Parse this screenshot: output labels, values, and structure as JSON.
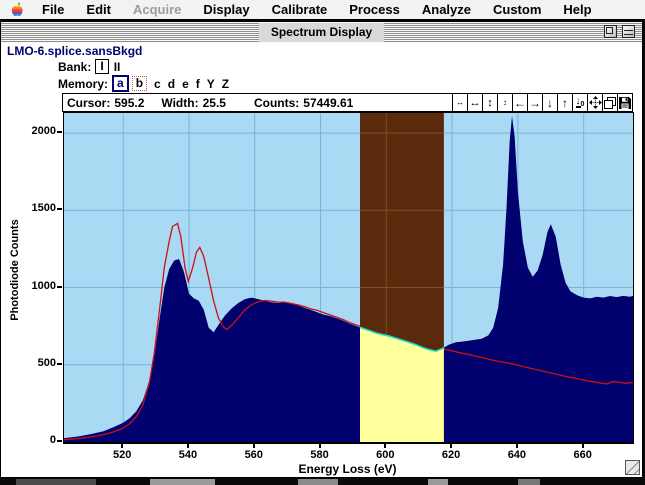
{
  "menu_bar": {
    "items": [
      {
        "label": "File",
        "enabled": true
      },
      {
        "label": "Edit",
        "enabled": true
      },
      {
        "label": "Acquire",
        "enabled": false
      },
      {
        "label": "Display",
        "enabled": true
      },
      {
        "label": "Calibrate",
        "enabled": true
      },
      {
        "label": "Process",
        "enabled": true
      },
      {
        "label": "Analyze",
        "enabled": true
      },
      {
        "label": "Custom",
        "enabled": true
      },
      {
        "label": "Help",
        "enabled": true
      }
    ]
  },
  "window": {
    "title": "Spectrum Display",
    "file_name": "LMO-6.splice.sansBkgd"
  },
  "bank": {
    "label": "Bank:",
    "options": [
      {
        "label": "I",
        "selected": true
      },
      {
        "label": "II",
        "selected": false
      }
    ]
  },
  "memory": {
    "label": "Memory:",
    "options": [
      {
        "label": "a",
        "state": "primary"
      },
      {
        "label": "b",
        "state": "secondary"
      },
      {
        "label": "c",
        "state": "none"
      },
      {
        "label": "d",
        "state": "none"
      },
      {
        "label": "e",
        "state": "none"
      },
      {
        "label": "f",
        "state": "none"
      },
      {
        "label": "Y",
        "state": "none"
      },
      {
        "label": "Z",
        "state": "none"
      }
    ]
  },
  "status": {
    "cursor_label": "Cursor:",
    "cursor_value": "595.2",
    "width_label": "Width:",
    "width_value": "25.5",
    "counts_label": "Counts:",
    "counts_value": "57449.61"
  },
  "toolbar": {
    "buttons": [
      {
        "name": "expand-horizontal-small-icon",
        "glyph": "↔",
        "size": "fs8"
      },
      {
        "name": "expand-horizontal-icon",
        "glyph": "↔",
        "size": "fs11"
      },
      {
        "name": "expand-vertical-icon",
        "glyph": "↕",
        "size": "fs11"
      },
      {
        "name": "contract-vertical-icon",
        "glyph": "↕",
        "size": "fs8"
      },
      {
        "name": "pan-left-icon",
        "glyph": "←",
        "size": "fs12"
      },
      {
        "name": "pan-right-icon",
        "glyph": "→",
        "size": "fs12"
      },
      {
        "name": "shift-down-icon",
        "glyph": "↓",
        "size": "fs12"
      },
      {
        "name": "shift-up-icon",
        "glyph": "↑",
        "size": "fs12"
      },
      {
        "name": "zero-baseline-icon",
        "glyph": "svg:zero",
        "size": "fs8"
      },
      {
        "name": "autoscale-icon",
        "glyph": "svg:move",
        "size": "fs8"
      },
      {
        "name": "copy-display-icon",
        "glyph": "svg:copy",
        "size": "fs8"
      },
      {
        "name": "save-display-icon",
        "glyph": "svg:disk",
        "size": "fs8"
      }
    ]
  },
  "colors": {
    "plot_bg": "#a9d9f3",
    "grid": "#74b6da",
    "spectrum_fill": "#00006e",
    "background_line": "#cc1111",
    "selection_above": "#5b2a0c",
    "selection_below": "#ffff9c",
    "selection_edge": "#18e0c8",
    "band_grid": "#8a4a22",
    "file_label": "#00006e"
  },
  "chart_data": {
    "type": "area",
    "title": "",
    "xlabel": "Energy Loss (eV)",
    "ylabel": "Photodiode Counts",
    "xlim": [
      502,
      675
    ],
    "ylim": [
      0,
      2130
    ],
    "x_ticks": [
      520,
      540,
      560,
      580,
      600,
      620,
      640,
      660
    ],
    "y_ticks": [
      0,
      500,
      1000,
      1500,
      2000
    ],
    "grid": true,
    "legend": "none",
    "selection": {
      "start_ev": 592,
      "end_ev": 617.5
    },
    "series": [
      {
        "name": "spectrum",
        "fill": true,
        "x": [
          502,
          506,
          510,
          514,
          517,
          520,
          522,
          524,
          526,
          528,
          529.5,
          531,
          532.5,
          534,
          535.5,
          537,
          538.5,
          540,
          541.5,
          543,
          544.5,
          546,
          547.5,
          549,
          551,
          553,
          555,
          557,
          559,
          561,
          563,
          565,
          567,
          569,
          571,
          573,
          575,
          577,
          579,
          581,
          583,
          585,
          587,
          589,
          591,
          593,
          595,
          597,
          599,
          601,
          603,
          605,
          607,
          609,
          611,
          613,
          615,
          617,
          619,
          621,
          623,
          625,
          627,
          629,
          631,
          632.5,
          634,
          635.5,
          636.5,
          637.5,
          638.2,
          639,
          640,
          641.5,
          643,
          644.5,
          646,
          647.5,
          649,
          650,
          651.5,
          653,
          654.5,
          656,
          658,
          660,
          662,
          664,
          666,
          668,
          670,
          672,
          674,
          675
        ],
        "y": [
          25,
          35,
          50,
          70,
          95,
          125,
          155,
          200,
          270,
          400,
          560,
          790,
          1000,
          1120,
          1175,
          1185,
          1100,
          960,
          930,
          915,
          855,
          740,
          710,
          760,
          820,
          865,
          900,
          925,
          935,
          925,
          915,
          905,
          900,
          905,
          895,
          885,
          870,
          855,
          840,
          825,
          815,
          800,
          785,
          765,
          750,
          735,
          720,
          705,
          695,
          685,
          672,
          658,
          645,
          630,
          612,
          598,
          588,
          605,
          630,
          645,
          650,
          655,
          662,
          668,
          690,
          740,
          870,
          1150,
          1500,
          1950,
          2110,
          1980,
          1620,
          1300,
          1130,
          1070,
          1110,
          1210,
          1360,
          1410,
          1330,
          1150,
          1030,
          975,
          950,
          935,
          930,
          940,
          935,
          945,
          938,
          946,
          940,
          945
        ]
      },
      {
        "name": "background",
        "fill": false,
        "x": [
          502,
          506,
          510,
          514,
          517,
          520,
          522,
          524,
          526,
          528,
          529.5,
          531,
          532.5,
          534,
          535,
          536.5,
          537.5,
          538.8,
          539.8,
          541,
          542.3,
          543.3,
          544.5,
          546,
          547.5,
          549,
          550.5,
          551.5,
          553,
          555,
          557,
          559,
          561,
          563,
          565,
          567,
          569,
          571,
          573,
          575,
          577,
          579,
          581,
          583,
          585,
          587,
          589,
          591,
          593,
          595,
          597,
          599,
          601,
          603,
          605,
          607,
          609,
          611,
          613,
          615,
          617,
          619,
          621,
          623,
          625,
          627,
          629,
          631,
          633,
          635,
          637,
          639,
          641,
          643,
          645,
          647,
          649,
          651,
          653,
          655,
          657,
          659,
          661,
          663,
          665,
          667,
          669,
          671,
          673,
          675
        ],
        "y": [
          15,
          22,
          32,
          48,
          65,
          90,
          120,
          165,
          240,
          390,
          580,
          850,
          1130,
          1300,
          1395,
          1415,
          1330,
          1130,
          1040,
          1120,
          1230,
          1260,
          1200,
          1060,
          910,
          800,
          745,
          728,
          755,
          805,
          855,
          888,
          908,
          916,
          912,
          906,
          906,
          897,
          888,
          877,
          862,
          852,
          837,
          822,
          807,
          792,
          772,
          757,
          742,
          727,
          712,
          702,
          692,
          680,
          668,
          655,
          645,
          635,
          625,
          615,
          605,
          595,
          585,
          575,
          567,
          557,
          547,
          537,
          527,
          518,
          512,
          502,
          492,
          482,
          472,
          462,
          452,
          442,
          432,
          422,
          415,
          405,
          396,
          390,
          382,
          376,
          392,
          386,
          380,
          385
        ]
      }
    ]
  }
}
